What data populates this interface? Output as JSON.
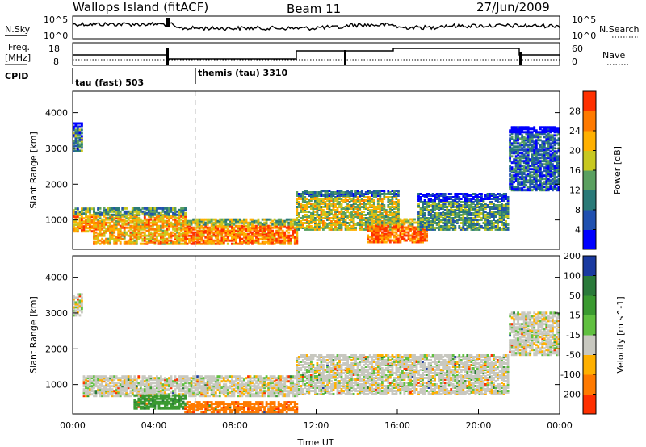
{
  "header": {
    "station": "Wallops Island (fitACF)",
    "beam": "Beam 11",
    "date": "27/Jun/2009"
  },
  "panels": {
    "noise": {
      "left_label": "N.Sky",
      "right_label": "N.Search",
      "left_ticks": [
        "10^5",
        "10^0"
      ],
      "right_ticks": [
        "10^5",
        "10^0"
      ]
    },
    "freq": {
      "left_label_line1": "Freq.",
      "left_label_line2": "[MHz]",
      "right_label": "Nave",
      "left_ticks": [
        "18",
        "8"
      ],
      "right_ticks": [
        "60",
        "0"
      ]
    },
    "cpid": {
      "label": "CPID",
      "programs": [
        {
          "name": "tau (fast) 503",
          "start_hour": 0
        },
        {
          "name": "themis (tau) 3310",
          "start_hour": 6
        }
      ]
    }
  },
  "chart_data": [
    {
      "type": "heatmap",
      "title": "",
      "xlabel": "",
      "ylabel": "Slant Range [km]",
      "xlim": [
        0,
        24
      ],
      "ylim": [
        180,
        4600
      ],
      "yticks": [
        1000,
        2000,
        3000,
        4000
      ],
      "colorbar": {
        "label": "Power [dB]",
        "range": [
          0,
          32
        ],
        "ticks": [
          4,
          8,
          12,
          16,
          20,
          24,
          28
        ],
        "colors": [
          "#0000ff",
          "#2050b0",
          "#2a7a78",
          "#5aa060",
          "#c8c820",
          "#ffb000",
          "#ff7a00",
          "#ff3000"
        ]
      },
      "features": [
        {
          "hours": [
            0.0,
            1.0
          ],
          "range_km": [
            650,
            1300
          ],
          "level_db": 24
        },
        {
          "hours": [
            1.0,
            5.5
          ],
          "range_km": [
            300,
            1300
          ],
          "level_db": 22
        },
        {
          "hours": [
            5.5,
            11.0
          ],
          "range_km": [
            300,
            1000
          ],
          "level_db": 26
        },
        {
          "hours": [
            11.0,
            16.0
          ],
          "range_km": [
            700,
            1800
          ],
          "level_db": 18
        },
        {
          "hours": [
            14.5,
            17.5
          ],
          "range_km": [
            350,
            1000
          ],
          "level_db": 28
        },
        {
          "hours": [
            17.0,
            21.5
          ],
          "range_km": [
            700,
            1700
          ],
          "level_db": 12
        },
        {
          "hours": [
            0.0,
            0.5
          ],
          "range_km": [
            2900,
            3700
          ],
          "level_db": 10
        },
        {
          "hours": [
            21.5,
            24.0
          ],
          "range_km": [
            1800,
            3600
          ],
          "level_db": 8
        }
      ]
    },
    {
      "type": "heatmap",
      "title": "",
      "xlabel": "Time UT",
      "ylabel": "Slant Range [km]",
      "xlim": [
        0,
        24
      ],
      "ylim": [
        180,
        4600
      ],
      "yticks": [
        1000,
        2000,
        3000,
        4000
      ],
      "xticks": [
        "00:00",
        "04:00",
        "08:00",
        "12:00",
        "16:00",
        "20:00",
        "00:00"
      ],
      "colorbar": {
        "label": "Velocity [m s^-1]",
        "ticks": [
          200,
          100,
          50,
          15,
          -15,
          -50,
          -100,
          -200
        ],
        "colors": [
          "#1a3aa0",
          "#2a7a3a",
          "#3a9a30",
          "#60c040",
          "#c8c8c0",
          "#ffb000",
          "#ff7a00",
          "#ff3000"
        ]
      },
      "features": [
        {
          "hours": [
            0.5,
            11.0
          ],
          "range_km": [
            650,
            1200
          ],
          "velocity": 0
        },
        {
          "hours": [
            3.0,
            5.5
          ],
          "range_km": [
            300,
            700
          ],
          "velocity": 60
        },
        {
          "hours": [
            5.5,
            11.0
          ],
          "range_km": [
            200,
            500
          ],
          "velocity": -60
        },
        {
          "hours": [
            11.0,
            21.5
          ],
          "range_km": [
            700,
            1800
          ],
          "velocity": 0
        },
        {
          "hours": [
            0.0,
            0.5
          ],
          "range_km": [
            2900,
            3500
          ],
          "velocity": 0
        },
        {
          "hours": [
            21.5,
            24.0
          ],
          "range_km": [
            1800,
            3000
          ],
          "velocity": 0
        }
      ]
    }
  ]
}
